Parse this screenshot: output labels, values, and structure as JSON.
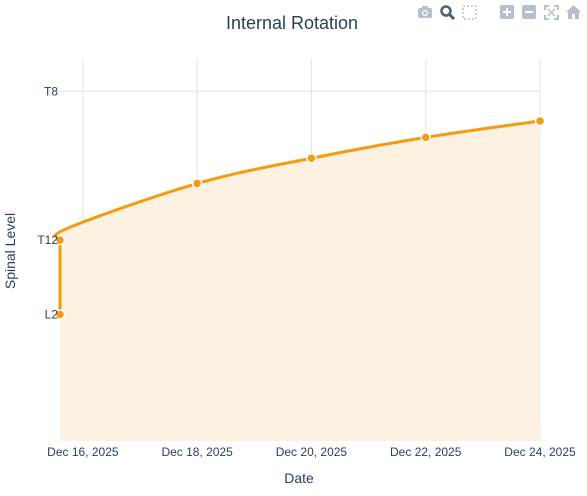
{
  "chart_data": {
    "type": "area",
    "title": "Internal Rotation",
    "xlabel": "Date",
    "ylabel": "Spinal Level",
    "y_scale": "categorical spinal levels (bottom to top: ..., L2, ..., T12, ..., T8)",
    "y_ticks": [
      {
        "label": "L2",
        "level": 2
      },
      {
        "label": "T12",
        "level": 3
      },
      {
        "label": "T8",
        "level": 5
      }
    ],
    "x_ticks": [
      "Dec 16, 2025",
      "Dec 18, 2025",
      "Dec 20, 2025",
      "Dec 22, 2025",
      "Dec 24, 2025"
    ],
    "series": [
      {
        "color": "#f39c12",
        "fill_color": "#fdf1e1",
        "points": [
          {
            "x": "Dec 15.6, 2025",
            "date": "2025-12-15",
            "y": 2
          },
          {
            "x": "Dec 15.6, 2025",
            "date": "2025-12-15",
            "y": 3
          },
          {
            "x": "Dec 18, 2025",
            "date": "2025-12-18",
            "y": 3.76
          },
          {
            "x": "Dec 20, 2025",
            "date": "2025-12-20",
            "y": 4.1
          },
          {
            "x": "Dec 22, 2025",
            "date": "2025-12-22",
            "y": 4.38
          },
          {
            "x": "Dec 24, 2025",
            "date": "2025-12-24",
            "y": 4.6
          }
        ]
      }
    ],
    "grid": true,
    "legend": "none"
  },
  "modebar": {
    "icons": [
      "camera-icon",
      "zoom-icon",
      "select-box-icon",
      "zoom-in-icon",
      "zoom-out-icon",
      "autoscale-icon",
      "home-icon"
    ]
  }
}
